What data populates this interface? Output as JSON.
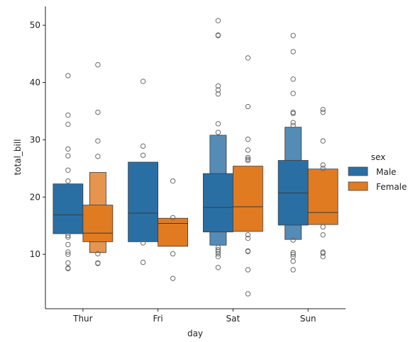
{
  "chart_data": {
    "type": "boxen",
    "xlabel": "day",
    "ylabel": "total_bill",
    "categories": [
      "Thur",
      "Fri",
      "Sat",
      "Sun"
    ],
    "ylim": [
      0.5,
      53.3
    ],
    "yticks": [
      10,
      20,
      30,
      40,
      50
    ],
    "legend": {
      "title": "sex",
      "placement": "right",
      "entries": [
        "Male",
        "Female"
      ]
    },
    "series": [
      {
        "name": "Male",
        "color": "#2a6fa4",
        "groups": [
          {
            "category": "Thur",
            "boxes": [
              [
                13.6,
                22.3
              ]
            ],
            "median": 16.9,
            "outliers": [
              41.2,
              34.3,
              32.7,
              28.4,
              27.2,
              24.7,
              22.8,
              13.3,
              13.0,
              11.7,
              10.4,
              10.0,
              8.5,
              7.6,
              7.5
            ]
          },
          {
            "category": "Fri",
            "boxes": [
              [
                12.2,
                26.1
              ]
            ],
            "median": 17.2,
            "outliers": [
              40.2,
              28.9,
              27.3,
              12.0,
              8.6
            ]
          },
          {
            "category": "Sat",
            "boxes": [
              [
                11.6,
                30.8
              ],
              [
                13.9,
                24.1
              ]
            ],
            "median": 18.2,
            "outliers": [
              50.8,
              48.3,
              48.2,
              39.4,
              38.7,
              38.0,
              32.8,
              31.3,
              11.2,
              10.8,
              10.5,
              10.1,
              9.6,
              7.7
            ]
          },
          {
            "category": "Sun",
            "boxes": [
              [
                12.6,
                32.2
              ],
              [
                15.1,
                26.4
              ]
            ],
            "median": 20.7,
            "outliers": [
              48.2,
              45.4,
              40.6,
              38.1,
              34.8,
              34.6,
              33.0,
              32.5,
              12.5,
              10.3,
              10.0,
              9.6,
              8.8,
              7.3
            ]
          }
        ]
      },
      {
        "name": "Female",
        "color": "#e07b22",
        "groups": [
          {
            "category": "Thur",
            "boxes": [
              [
                10.3,
                24.3
              ],
              [
                12.2,
                18.6
              ]
            ],
            "median": 13.7,
            "outliers": [
              43.1,
              34.8,
              29.8,
              27.1,
              10.1,
              8.5,
              8.4
            ]
          },
          {
            "category": "Fri",
            "boxes": [
              [
                11.4,
                16.3
              ]
            ],
            "median": 15.4,
            "outliers": [
              22.8,
              16.4,
              10.1,
              5.8
            ]
          },
          {
            "category": "Sat",
            "boxes": [
              [
                14.0,
                25.4
              ]
            ],
            "median": 18.3,
            "outliers": [
              44.3,
              35.8,
              30.1,
              28.2,
              26.9,
              26.6,
              26.4,
              13.4,
              12.8,
              10.6,
              10.5,
              7.3,
              3.1
            ]
          },
          {
            "category": "Sun",
            "boxes": [
              [
                15.2,
                24.9
              ]
            ],
            "median": 17.3,
            "outliers": [
              35.3,
              34.8,
              29.8,
              25.6,
              25.0,
              14.8,
              13.4,
              10.4,
              10.2,
              9.6
            ]
          }
        ]
      }
    ]
  }
}
